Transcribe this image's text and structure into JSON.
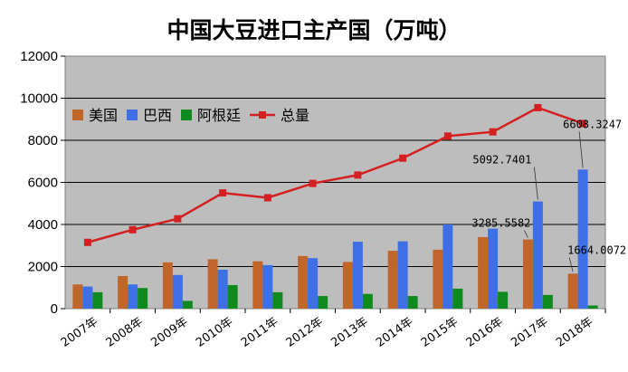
{
  "chart_data": {
    "type": "bar",
    "title": "中国大豆进口主产国（万吨）",
    "categories": [
      "2007年",
      "2008年",
      "2009年",
      "2010年",
      "2011年",
      "2012年",
      "2013年",
      "2014年",
      "2015年",
      "2016年",
      "2017年",
      "2018年"
    ],
    "ylim": [
      0,
      12000
    ],
    "yticks": [
      0,
      2000,
      4000,
      6000,
      8000,
      10000,
      12000
    ],
    "grid": true,
    "legend_position": "top-left",
    "series": [
      {
        "name": "美国",
        "kind": "bar",
        "color": "#c0662a",
        "values": [
          1150,
          1550,
          2200,
          2350,
          2250,
          2500,
          2220,
          2750,
          2800,
          3400,
          3285.5582,
          1664.0072
        ]
      },
      {
        "name": "巴西",
        "kind": "bar",
        "color": "#3f6fe6",
        "values": [
          1050,
          1150,
          1600,
          1850,
          2070,
          2400,
          3180,
          3200,
          4000,
          3800,
          5092.7401,
          6608.3247
        ]
      },
      {
        "name": "阿根廷",
        "kind": "bar",
        "color": "#0f8a1f",
        "values": [
          780,
          980,
          370,
          1120,
          780,
          600,
          700,
          600,
          950,
          800,
          650,
          150
        ]
      },
      {
        "name": "总量",
        "kind": "line",
        "color": "#d42020",
        "values": [
          3150,
          3750,
          4270,
          5500,
          5270,
          5950,
          6350,
          7150,
          8200,
          8400,
          9550,
          8800
        ]
      }
    ],
    "data_labels": [
      {
        "text": "3285.5582",
        "series": "美国",
        "category": "2017年"
      },
      {
        "text": "5092.7401",
        "series": "巴西",
        "category": "2017年"
      },
      {
        "text": "1664.0072",
        "series": "美国",
        "category": "2018年"
      },
      {
        "text": "6608.3247",
        "series": "巴西",
        "category": "2018年"
      }
    ]
  }
}
